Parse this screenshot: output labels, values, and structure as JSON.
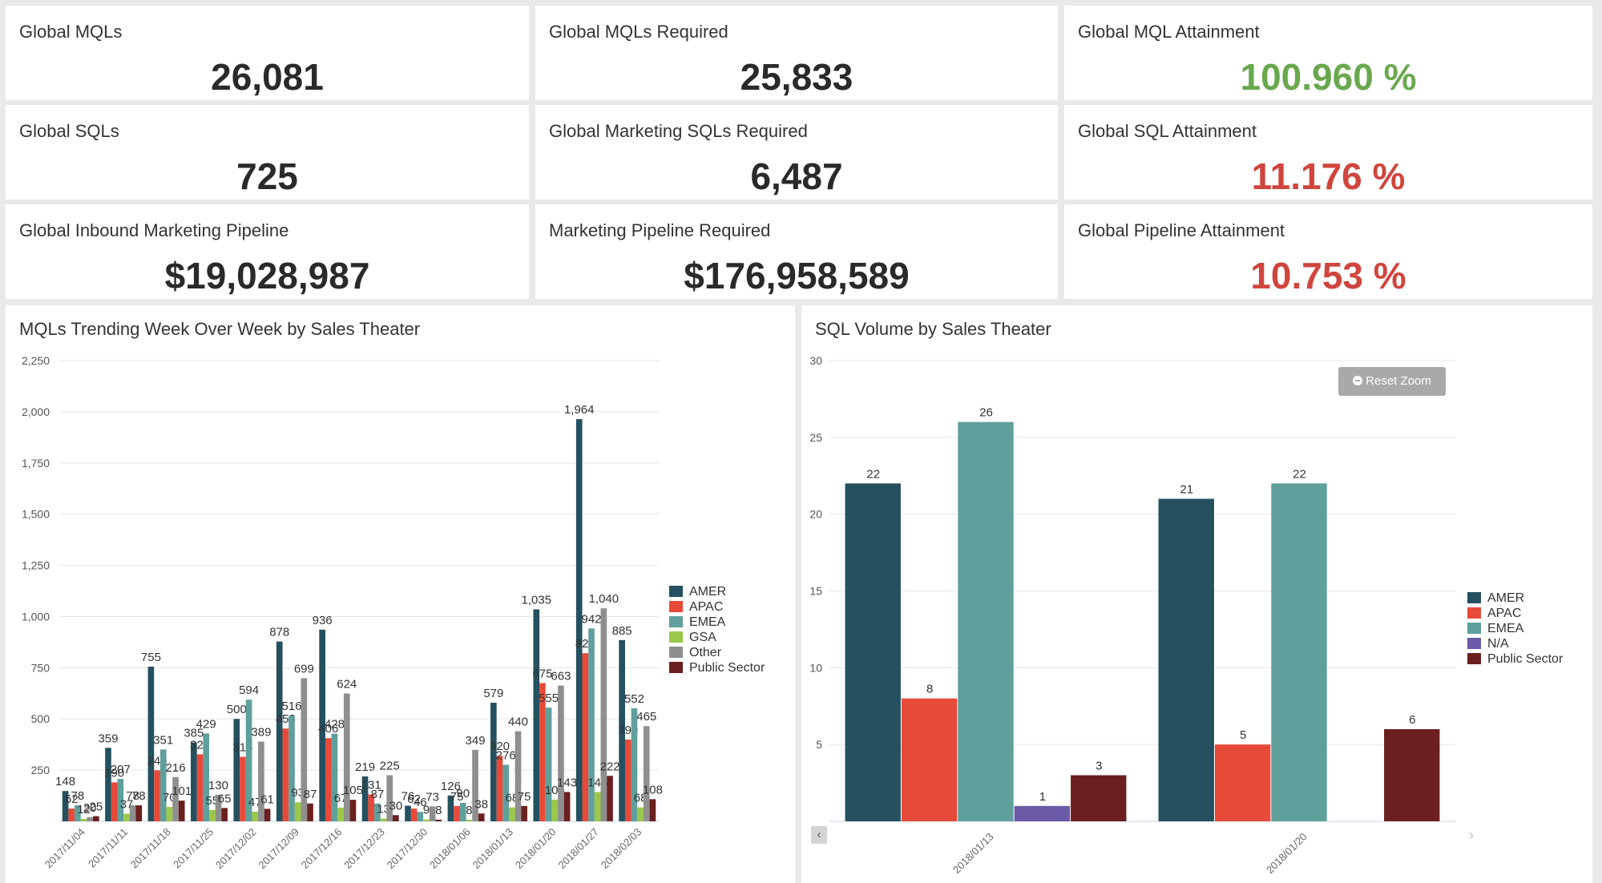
{
  "kpis": [
    {
      "title": "Global MQLs",
      "value": "26,081",
      "color": "#2a2a2a"
    },
    {
      "title": "Global MQLs Required",
      "value": "25,833",
      "color": "#2a2a2a"
    },
    {
      "title": "Global MQL Attainment",
      "value": "100.960 %",
      "color": "#6aa84f"
    },
    {
      "title": "Global SQLs",
      "value": "725",
      "color": "#2a2a2a"
    },
    {
      "title": "Global Marketing SQLs Required",
      "value": "6,487",
      "color": "#2a2a2a"
    },
    {
      "title": "Global SQL Attainment",
      "value": "11.176 %",
      "color": "#d0453d"
    },
    {
      "title": "Global Inbound Marketing Pipeline",
      "value": "$19,028,987",
      "color": "#2a2a2a"
    },
    {
      "title": "Marketing Pipeline Required",
      "value": "$176,958,589",
      "color": "#2a2a2a"
    },
    {
      "title": "Global Pipeline Attainment",
      "value": "10.753 %",
      "color": "#d0453d"
    }
  ],
  "mql_panel": {
    "title": "MQLs Trending Week Over Week by Sales Theater"
  },
  "sql_panel": {
    "title": "SQL Volume by Sales Theater",
    "reset_zoom_label": "Reset Zoom"
  },
  "chart_data": [
    {
      "type": "bar",
      "title": "MQLs Trending Week Over Week by Sales Theater",
      "categories": [
        "2017/11/04",
        "2017/11/11",
        "2017/11/18",
        "2017/11/25",
        "2017/12/02",
        "2017/12/09",
        "2017/12/16",
        "2017/12/23",
        "2017/12/30",
        "2018/01/06",
        "2018/01/13",
        "2018/01/20",
        "2018/01/27",
        "2018/02/03"
      ],
      "ylim": [
        0,
        2250
      ],
      "yticks": [
        250,
        500,
        750,
        1000,
        1250,
        1500,
        1750,
        2000,
        2250
      ],
      "ytick_labels": [
        "250",
        "500",
        "750",
        "1,000",
        "1,250",
        "1,500",
        "1,750",
        "2,000",
        "2,250"
      ],
      "grid": true,
      "legend": "right",
      "series": [
        {
          "name": "AMER",
          "color": "#24505f",
          "values": [
            148,
            359,
            755,
            385,
            500,
            878,
            936,
            219,
            76,
            126,
            579,
            1035,
            1964,
            885
          ]
        },
        {
          "name": "APAC",
          "color": "#e84a3a",
          "values": [
            62,
            190,
            249,
            327,
            315,
            453,
            406,
            131,
            62,
            75,
            320,
            675,
            821,
            399
          ]
        },
        {
          "name": "EMEA",
          "color": "#5f9f9c",
          "values": [
            78,
            207,
            351,
            429,
            594,
            516,
            428,
            87,
            46,
            90,
            276,
            555,
            942,
            552
          ]
        },
        {
          "name": "GSA",
          "color": "#9bc84a",
          "values": [
            12,
            37,
            70,
            55,
            47,
            93,
            67,
            13,
            9,
            8,
            68,
            106,
            143,
            68
          ]
        },
        {
          "name": "Other",
          "color": "#8f8f8f",
          "values": [
            20,
            78,
            216,
            130,
            389,
            699,
            624,
            225,
            73,
            349,
            440,
            663,
            1040,
            465
          ]
        },
        {
          "name": "Public Sector",
          "color": "#6b1f1f",
          "values": [
            25,
            78,
            101,
            65,
            61,
            87,
            105,
            30,
            8,
            38,
            75,
            143,
            222,
            108
          ]
        }
      ]
    },
    {
      "type": "bar",
      "title": "SQL Volume by Sales Theater",
      "categories": [
        "2018/01/13",
        "2018/01/20"
      ],
      "ylim": [
        0,
        30
      ],
      "yticks": [
        5,
        10,
        15,
        20,
        25,
        30
      ],
      "ytick_labels": [
        "5",
        "10",
        "15",
        "20",
        "25",
        "30"
      ],
      "grid": true,
      "legend": "right",
      "series": [
        {
          "name": "AMER",
          "color": "#24505f",
          "values": [
            22,
            21
          ]
        },
        {
          "name": "APAC",
          "color": "#e84a3a",
          "values": [
            8,
            5
          ]
        },
        {
          "name": "EMEA",
          "color": "#5f9f9c",
          "values": [
            26,
            22
          ]
        },
        {
          "name": "N/A",
          "color": "#6a5aa8",
          "values": [
            1,
            null
          ]
        },
        {
          "name": "Public Sector",
          "color": "#6b1f1f",
          "values": [
            3,
            6
          ]
        }
      ]
    }
  ]
}
